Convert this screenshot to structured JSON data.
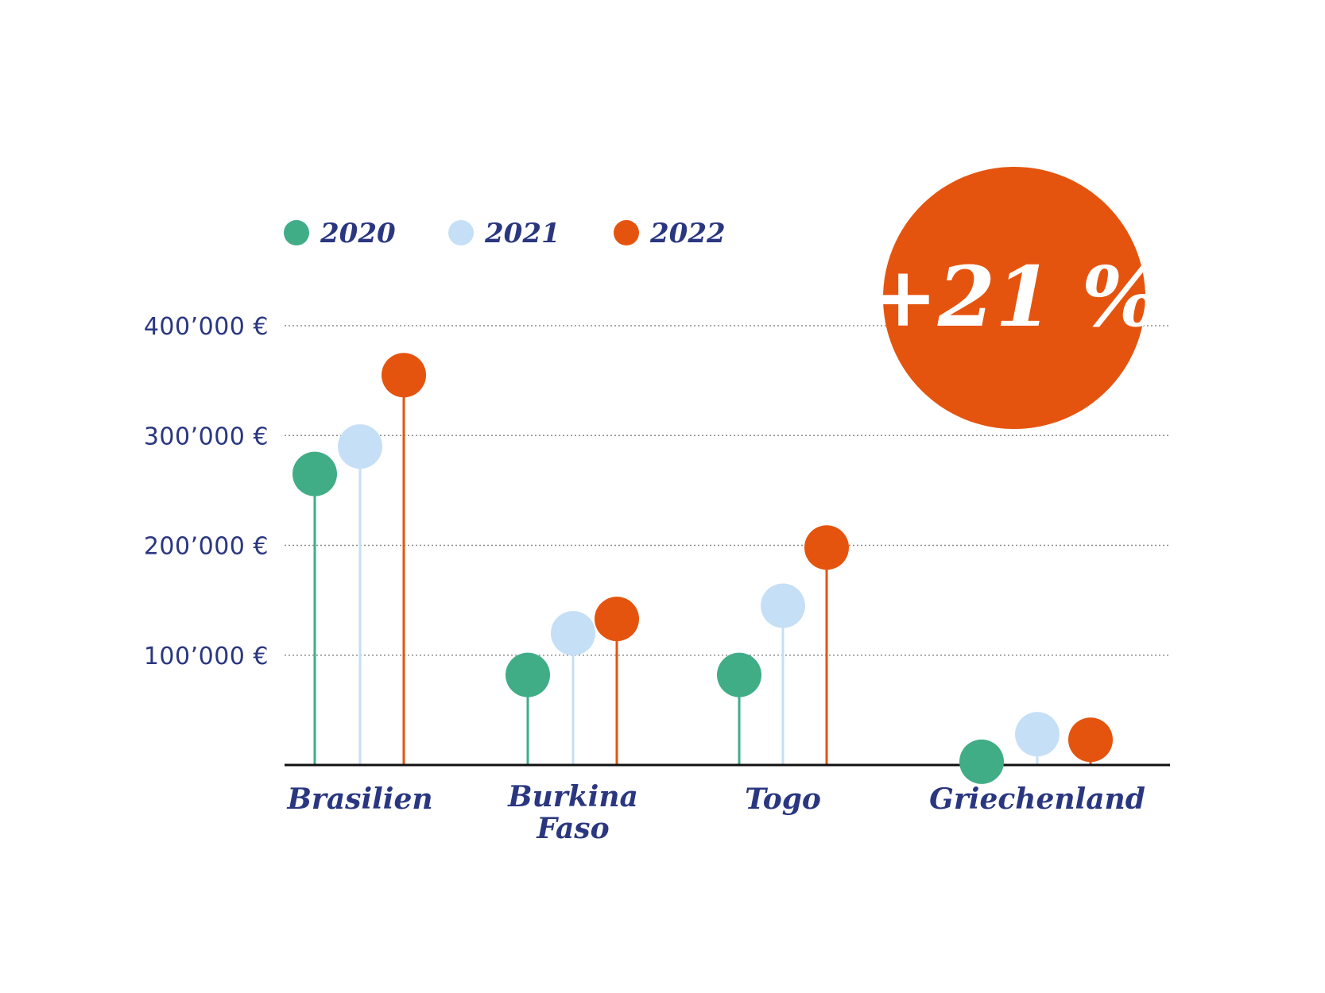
{
  "chart_data": {
    "type": "lollipop",
    "categories": [
      "Brasilien",
      "Burkina Faso",
      "Togo",
      "Griechenland"
    ],
    "series": [
      {
        "name": "2020",
        "color": "#41ad87",
        "values": [
          265000,
          82000,
          82000,
          3000
        ]
      },
      {
        "name": "2021",
        "color": "#c5dff6",
        "values": [
          290000,
          120000,
          145000,
          28000
        ]
      },
      {
        "name": "2022",
        "color": "#e5540f",
        "values": [
          355000,
          133000,
          198000,
          23000
        ]
      }
    ],
    "y_ticks": [
      "100’000 €",
      "200’000 €",
      "300’000 €",
      "400’000 €"
    ],
    "ylim": [
      0,
      400000
    ],
    "grid": "dotted horizontal",
    "legend_position": "top-left",
    "badge": {
      "text": "+21 %",
      "color": "#e5540f"
    },
    "text_color": "#2a3780"
  }
}
